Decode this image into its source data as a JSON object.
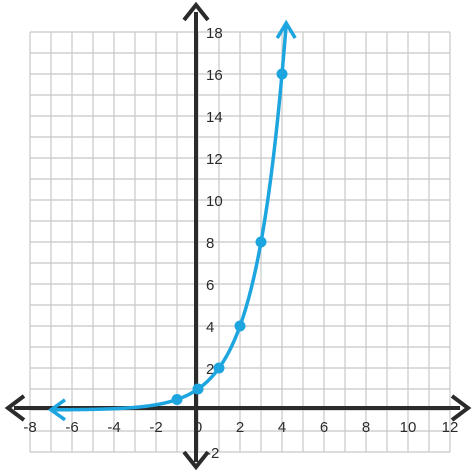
{
  "chart_data": {
    "type": "line",
    "title": "",
    "xlabel": "",
    "ylabel": "",
    "xlim": [
      -8,
      12
    ],
    "ylim": [
      -2,
      18
    ],
    "grid": true,
    "x_ticks": [
      -8,
      -6,
      -4,
      -2,
      0,
      2,
      4,
      6,
      8,
      10,
      12
    ],
    "x_tick_labels": [
      "-8",
      "-6",
      "-4",
      "-2",
      "0",
      "2",
      "4",
      "6",
      "8",
      "10",
      "12"
    ],
    "y_ticks": [
      -2,
      2,
      4,
      6,
      8,
      10,
      12,
      14,
      16,
      18
    ],
    "y_tick_labels": [
      "-2",
      "2",
      "4",
      "6",
      "8",
      "10",
      "12",
      "14",
      "16",
      "18"
    ],
    "curve": {
      "function": "y = 2^x",
      "x_range": [
        -7,
        4.2
      ]
    },
    "series": [
      {
        "x": [
          -1,
          0,
          1,
          2,
          3,
          4
        ],
        "y": [
          0.5,
          1,
          2,
          4,
          8,
          16
        ]
      }
    ],
    "colors": {
      "curve": "#1da5e0",
      "grid": "#c8c8c8",
      "axes": "#2b2b2b"
    }
  }
}
